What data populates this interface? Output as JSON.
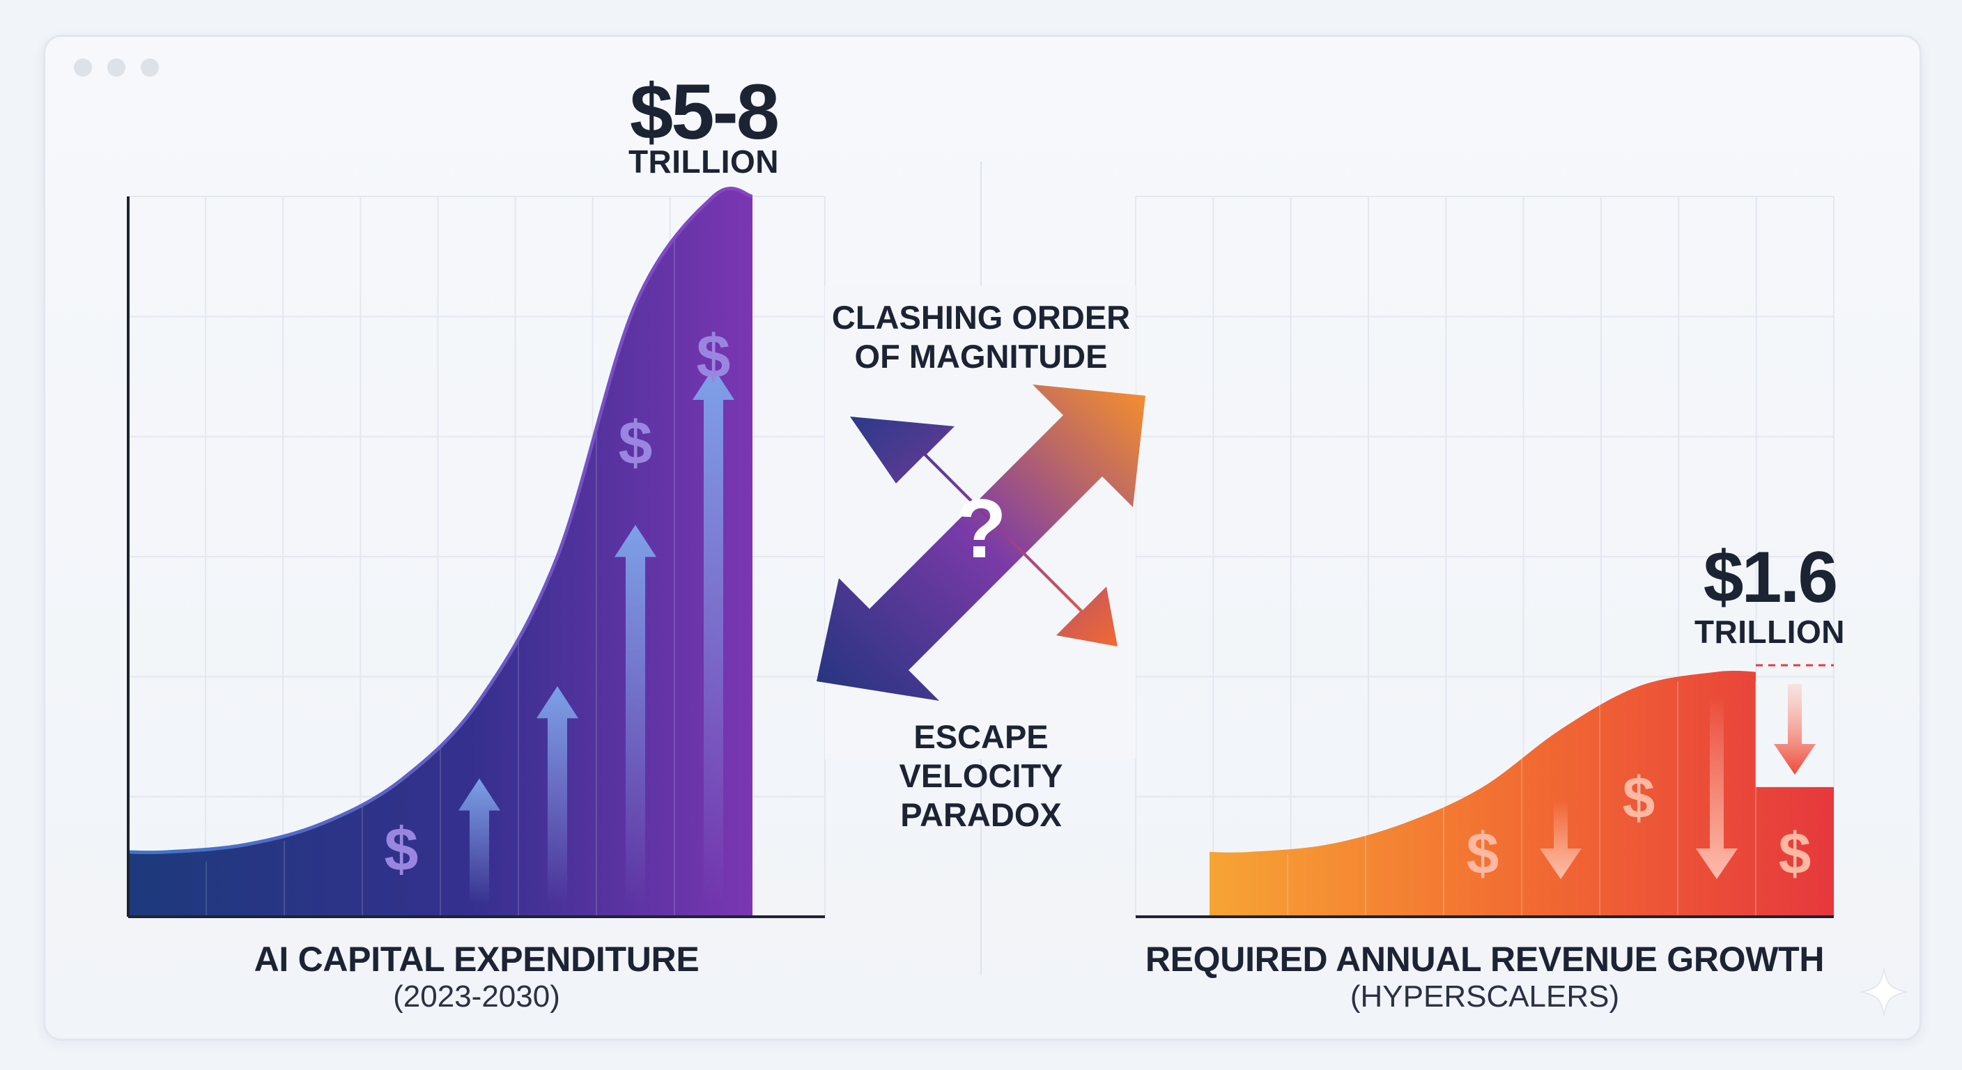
{
  "left_chart": {
    "value_label": "$5-8",
    "unit_label": "TRILLION",
    "title": "AI CAPITAL EXPENDITURE",
    "subtitle": "(2023-2030)"
  },
  "right_chart": {
    "value_label": "$1.6",
    "unit_label": "TRILLION",
    "title": "REQUIRED ANNUAL REVENUE GROWTH",
    "subtitle": "(HYPERSCALERS)"
  },
  "center": {
    "top_lines": [
      "CLASHING ORDER",
      "OF MAGNITUDE"
    ],
    "question_mark": "?",
    "bottom_lines": [
      "ESCAPE",
      "VELOCITY",
      "PARADOX"
    ]
  },
  "colors": {
    "left_gradient": [
      "#1e3a7a",
      "#3a2f8f",
      "#7a35b0"
    ],
    "right_gradient": [
      "#f5a030",
      "#f06a30",
      "#e8393c"
    ],
    "text": "#1c2333",
    "grid": "#e3e7ee"
  },
  "chart_data": [
    {
      "type": "area",
      "title": "AI CAPITAL EXPENDITURE",
      "subtitle": "(2023-2030)",
      "annotation": "$5-8 TRILLION",
      "curve": "exponential",
      "relative_values": [
        0.09,
        0.1,
        0.13,
        0.19,
        0.3,
        0.5,
        0.85,
        1.0
      ],
      "overlay_icons": [
        {
          "type": "dollar",
          "column": 3
        },
        {
          "type": "up-arrow",
          "column": 4
        },
        {
          "type": "up-arrow",
          "column": 5
        },
        {
          "type": "up-arrow",
          "column": 6
        },
        {
          "type": "dollar",
          "column": 6
        },
        {
          "type": "up-arrow",
          "column": 7
        },
        {
          "type": "dollar",
          "column": 7
        }
      ],
      "grid": true
    },
    {
      "type": "area",
      "title": "REQUIRED ANNUAL REVENUE GROWTH",
      "subtitle": "(HYPERSCALERS)",
      "annotation": "$1.6 TRILLION",
      "curve": "s-curve",
      "relative_values": [
        0.09,
        0.1,
        0.13,
        0.18,
        0.26,
        0.32,
        0.34,
        0.18
      ],
      "overlay_icons": [
        {
          "type": "dollar",
          "column": 3
        },
        {
          "type": "down-arrow",
          "column": 4
        },
        {
          "type": "dollar",
          "column": 5
        },
        {
          "type": "down-arrow",
          "column": 6
        },
        {
          "type": "down-arrow",
          "column": 7
        },
        {
          "type": "dollar",
          "column": 7
        }
      ],
      "grid": true
    }
  ]
}
